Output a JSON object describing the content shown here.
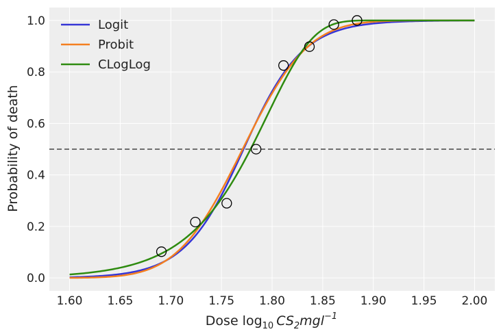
{
  "chart_data": {
    "type": "line",
    "xlabel_prefix": "Dose log",
    "xlabel_sub": "10",
    "xlabel_math": "CS",
    "xlabel_math_sub": "2",
    "xlabel_math_rest": "mgl",
    "xlabel_sup": "−1",
    "ylabel": "Probability of death",
    "xlim": [
      1.58,
      2.02
    ],
    "ylim": [
      -0.05,
      1.05
    ],
    "xticks": [
      1.6,
      1.65,
      1.7,
      1.75,
      1.8,
      1.85,
      1.9,
      1.95,
      2.0
    ],
    "xtick_labels": [
      "1.60",
      "1.65",
      "1.70",
      "1.75",
      "1.80",
      "1.85",
      "1.90",
      "1.95",
      "2.00"
    ],
    "yticks": [
      0.0,
      0.2,
      0.4,
      0.6,
      0.8,
      1.0
    ],
    "ytick_labels": [
      "0.0",
      "0.2",
      "0.4",
      "0.6",
      "0.8",
      "1.0"
    ],
    "grid": true,
    "legend_position": "top-left",
    "reference_line": {
      "y": 0.5,
      "style": "dashed",
      "color": "#6e6e6e"
    },
    "observed": {
      "x": [
        1.6907,
        1.7242,
        1.7552,
        1.7842,
        1.8113,
        1.8369,
        1.861,
        1.8839
      ],
      "y": [
        0.102,
        0.217,
        0.29,
        0.5,
        0.825,
        0.898,
        0.984,
        1.0
      ]
    },
    "series": [
      {
        "name": "Logit",
        "color": "#3535d6",
        "model": "logit",
        "a": -60.72,
        "b": 34.27
      },
      {
        "name": "Probit",
        "color": "#f47f20",
        "model": "probit",
        "a": -34.94,
        "b": 19.73
      },
      {
        "name": "CLogLog",
        "color": "#2e8b10",
        "model": "cloglog",
        "a": -39.57,
        "b": 22.04
      }
    ]
  }
}
